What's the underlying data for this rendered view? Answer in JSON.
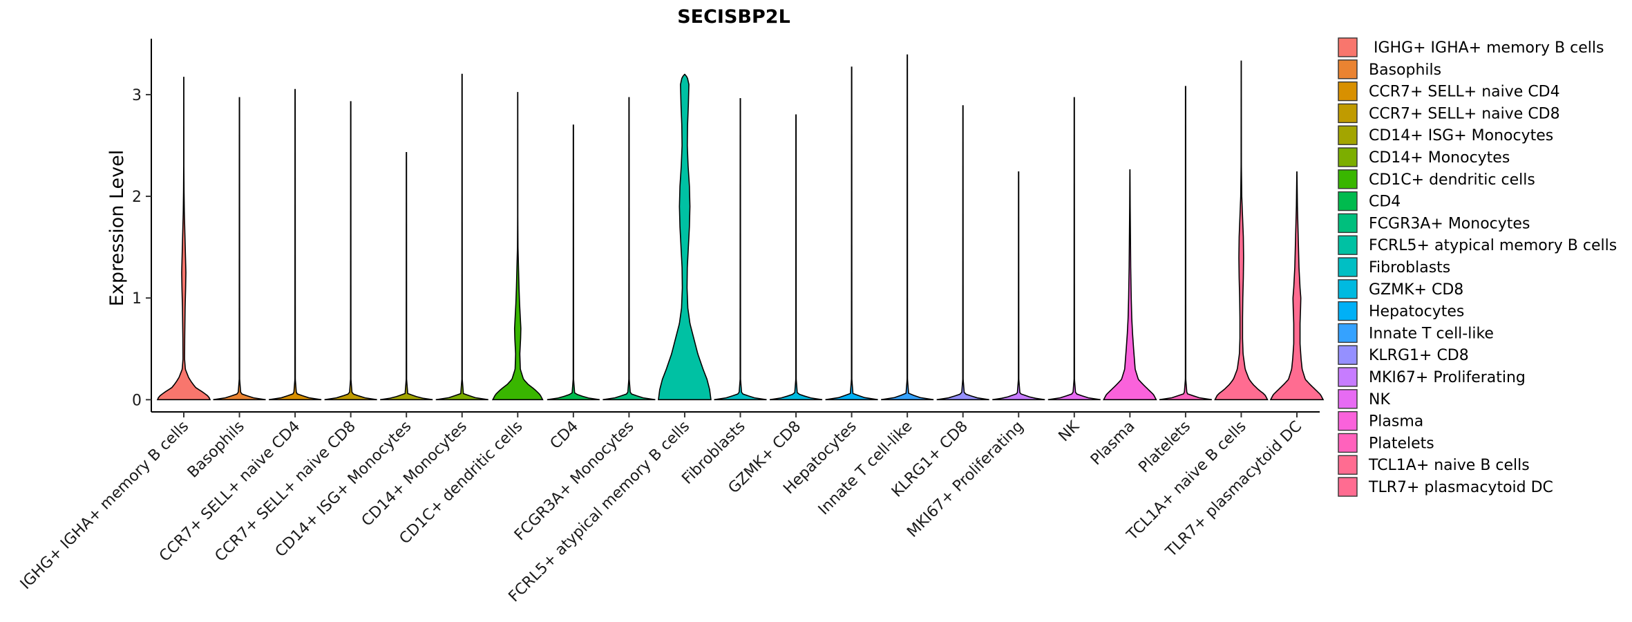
{
  "chart_data": {
    "type": "violin",
    "title": "SECISBP2L",
    "xlabel": "",
    "ylabel": "Expression Level",
    "ylim": [
      -0.12,
      3.55
    ],
    "yticks": [
      0,
      1,
      2,
      3
    ],
    "grid": false,
    "legend_position": "right",
    "categories": [
      "IGHG+ IGHA+ memory B cells",
      "Basophils",
      "CCR7+ SELL+ naive CD4",
      "CCR7+ SELL+ naive CD8",
      "CD14+ ISG+ Monocytes",
      "CD14+ Monocytes",
      "CD1C+ dendritic cells",
      "CD4",
      "FCGR3A+ Monocytes",
      "FCRL5+ atypical memory B cells",
      "Fibroblasts",
      "GZMK+ CD8",
      "Hepatocytes",
      "Innate T cell-like",
      "KLRG1+ CD8",
      "MKI67+ Proliferating",
      "NK",
      "Plasma",
      "Platelets",
      "TCL1A+ naive B cells",
      "TLR7+ plasmacytoid DC"
    ],
    "legend_labels": [
      " IGHG+ IGHA+ memory B cells",
      "Basophils",
      "CCR7+ SELL+ naive CD4",
      "CCR7+ SELL+ naive CD8",
      "CD14+ ISG+ Monocytes",
      "CD14+ Monocytes",
      "CD1C+ dendritic cells",
      "CD4",
      "FCGR3A+ Monocytes",
      "FCRL5+ atypical memory B cells",
      "Fibroblasts",
      "GZMK+ CD8",
      "Hepatocytes",
      "Innate T cell-like",
      "KLRG1+ CD8",
      "MKI67+ Proliferating",
      "NK",
      "Plasma",
      "Platelets",
      "TCL1A+ naive B cells",
      "TLR7+ plasmacytoid DC"
    ],
    "colors": [
      "#F8766D",
      "#EA8331",
      "#D89000",
      "#C09B00",
      "#A3A500",
      "#7CAE00",
      "#39B600",
      "#00BB4E",
      "#00BF7D",
      "#00C1A3",
      "#00BFC4",
      "#00BAE0",
      "#00B0F6",
      "#35A2FF",
      "#9590FF",
      "#C77CFF",
      "#E76BF3",
      "#FA62DB",
      "#FF62BC",
      "#FF6C91",
      "#FF6C91"
    ],
    "max_values": [
      3.17,
      2.97,
      3.05,
      2.93,
      2.43,
      3.2,
      3.02,
      2.7,
      2.97,
      3.2,
      2.96,
      2.8,
      3.27,
      3.39,
      2.89,
      2.24,
      2.97,
      2.26,
      3.08,
      3.33,
      2.24
    ],
    "density_profiles": [
      [
        [
          0,
          1.0
        ],
        [
          0.03,
          0.95
        ],
        [
          0.07,
          0.75
        ],
        [
          0.12,
          0.45
        ],
        [
          0.17,
          0.3
        ],
        [
          0.22,
          0.18
        ],
        [
          0.3,
          0.06
        ],
        [
          0.4,
          0.03
        ],
        [
          0.6,
          0.035
        ],
        [
          0.9,
          0.05
        ],
        [
          1.1,
          0.07
        ],
        [
          1.25,
          0.08
        ],
        [
          1.45,
          0.06
        ],
        [
          1.65,
          0.04
        ],
        [
          1.85,
          0.02
        ],
        [
          2.05,
          0.01
        ],
        [
          2.3,
          0.004
        ],
        [
          3.17,
          0.003
        ]
      ],
      [
        [
          0,
          1.0
        ],
        [
          0.02,
          0.5
        ],
        [
          0.06,
          0.05
        ],
        [
          0.2,
          0.008
        ],
        [
          2.97,
          0.005
        ]
      ],
      [
        [
          0,
          1.0
        ],
        [
          0.02,
          0.5
        ],
        [
          0.06,
          0.05
        ],
        [
          0.2,
          0.008
        ],
        [
          3.05,
          0.005
        ]
      ],
      [
        [
          0,
          1.0
        ],
        [
          0.02,
          0.5
        ],
        [
          0.06,
          0.05
        ],
        [
          0.2,
          0.008
        ],
        [
          2.93,
          0.005
        ]
      ],
      [
        [
          0,
          1.0
        ],
        [
          0.02,
          0.5
        ],
        [
          0.06,
          0.05
        ],
        [
          0.2,
          0.008
        ],
        [
          2.43,
          0.005
        ]
      ],
      [
        [
          0,
          1.0
        ],
        [
          0.02,
          0.5
        ],
        [
          0.06,
          0.05
        ],
        [
          0.2,
          0.008
        ],
        [
          3.2,
          0.005
        ]
      ],
      [
        [
          0,
          0.95
        ],
        [
          0.05,
          0.85
        ],
        [
          0.1,
          0.65
        ],
        [
          0.15,
          0.4
        ],
        [
          0.2,
          0.22
        ],
        [
          0.3,
          0.1
        ],
        [
          0.45,
          0.08
        ],
        [
          0.6,
          0.11
        ],
        [
          0.7,
          0.12
        ],
        [
          0.8,
          0.1
        ],
        [
          0.95,
          0.07
        ],
        [
          1.1,
          0.05
        ],
        [
          1.3,
          0.03
        ],
        [
          1.5,
          0.01
        ],
        [
          1.8,
          0.004
        ],
        [
          3.02,
          0.003
        ]
      ],
      [
        [
          0,
          1.0
        ],
        [
          0.02,
          0.5
        ],
        [
          0.06,
          0.05
        ],
        [
          0.2,
          0.008
        ],
        [
          2.7,
          0.005
        ]
      ],
      [
        [
          0,
          1.0
        ],
        [
          0.02,
          0.5
        ],
        [
          0.06,
          0.05
        ],
        [
          0.2,
          0.008
        ],
        [
          2.97,
          0.005
        ]
      ],
      [
        [
          0,
          1.0
        ],
        [
          0.1,
          0.95
        ],
        [
          0.2,
          0.85
        ],
        [
          0.3,
          0.7
        ],
        [
          0.45,
          0.5
        ],
        [
          0.6,
          0.35
        ],
        [
          0.75,
          0.2
        ],
        [
          0.9,
          0.12
        ],
        [
          1.1,
          0.09
        ],
        [
          1.3,
          0.1
        ],
        [
          1.5,
          0.14
        ],
        [
          1.7,
          0.18
        ],
        [
          1.9,
          0.2
        ],
        [
          2.1,
          0.18
        ],
        [
          2.3,
          0.13
        ],
        [
          2.5,
          0.1
        ],
        [
          2.7,
          0.11
        ],
        [
          2.9,
          0.14
        ],
        [
          3.1,
          0.16
        ],
        [
          3.17,
          0.1
        ],
        [
          3.2,
          0.003
        ]
      ],
      [
        [
          0,
          1.0
        ],
        [
          0.02,
          0.5
        ],
        [
          0.06,
          0.05
        ],
        [
          0.2,
          0.008
        ],
        [
          2.96,
          0.005
        ]
      ],
      [
        [
          0,
          1.0
        ],
        [
          0.02,
          0.5
        ],
        [
          0.06,
          0.05
        ],
        [
          0.2,
          0.008
        ],
        [
          2.8,
          0.005
        ]
      ],
      [
        [
          0,
          1.0
        ],
        [
          0.02,
          0.5
        ],
        [
          0.06,
          0.05
        ],
        [
          0.2,
          0.008
        ],
        [
          3.27,
          0.005
        ]
      ],
      [
        [
          0,
          1.0
        ],
        [
          0.02,
          0.5
        ],
        [
          0.06,
          0.05
        ],
        [
          0.2,
          0.008
        ],
        [
          3.39,
          0.005
        ]
      ],
      [
        [
          0,
          1.0
        ],
        [
          0.02,
          0.5
        ],
        [
          0.06,
          0.05
        ],
        [
          0.2,
          0.008
        ],
        [
          2.89,
          0.005
        ]
      ],
      [
        [
          0,
          1.0
        ],
        [
          0.02,
          0.5
        ],
        [
          0.06,
          0.05
        ],
        [
          0.2,
          0.008
        ],
        [
          2.24,
          0.005
        ]
      ],
      [
        [
          0,
          1.0
        ],
        [
          0.02,
          0.5
        ],
        [
          0.06,
          0.05
        ],
        [
          0.2,
          0.008
        ],
        [
          2.97,
          0.005
        ]
      ],
      [
        [
          0,
          1.0
        ],
        [
          0.05,
          0.9
        ],
        [
          0.1,
          0.7
        ],
        [
          0.15,
          0.5
        ],
        [
          0.2,
          0.32
        ],
        [
          0.3,
          0.2
        ],
        [
          0.4,
          0.17
        ],
        [
          0.5,
          0.14
        ],
        [
          0.65,
          0.1
        ],
        [
          0.8,
          0.07
        ],
        [
          1.0,
          0.05
        ],
        [
          1.3,
          0.03
        ],
        [
          1.6,
          0.02
        ],
        [
          1.9,
          0.01
        ],
        [
          2.26,
          0.003
        ]
      ],
      [
        [
          0,
          1.0
        ],
        [
          0.02,
          0.5
        ],
        [
          0.06,
          0.05
        ],
        [
          0.2,
          0.008
        ],
        [
          3.08,
          0.005
        ]
      ],
      [
        [
          0,
          1.0
        ],
        [
          0.05,
          0.9
        ],
        [
          0.1,
          0.65
        ],
        [
          0.15,
          0.45
        ],
        [
          0.2,
          0.3
        ],
        [
          0.3,
          0.15
        ],
        [
          0.45,
          0.07
        ],
        [
          0.6,
          0.05
        ],
        [
          0.8,
          0.05
        ],
        [
          1.0,
          0.06
        ],
        [
          1.2,
          0.08
        ],
        [
          1.4,
          0.09
        ],
        [
          1.6,
          0.08
        ],
        [
          1.8,
          0.05
        ],
        [
          2.0,
          0.02
        ],
        [
          2.3,
          0.006
        ],
        [
          3.33,
          0.003
        ]
      ],
      [
        [
          0,
          1.0
        ],
        [
          0.05,
          0.9
        ],
        [
          0.1,
          0.7
        ],
        [
          0.15,
          0.5
        ],
        [
          0.2,
          0.32
        ],
        [
          0.3,
          0.2
        ],
        [
          0.4,
          0.16
        ],
        [
          0.55,
          0.12
        ],
        [
          0.75,
          0.12
        ],
        [
          0.9,
          0.14
        ],
        [
          1.0,
          0.15
        ],
        [
          1.1,
          0.12
        ],
        [
          1.3,
          0.08
        ],
        [
          1.5,
          0.06
        ],
        [
          1.7,
          0.04
        ],
        [
          1.9,
          0.02
        ],
        [
          2.24,
          0.003
        ]
      ]
    ]
  }
}
